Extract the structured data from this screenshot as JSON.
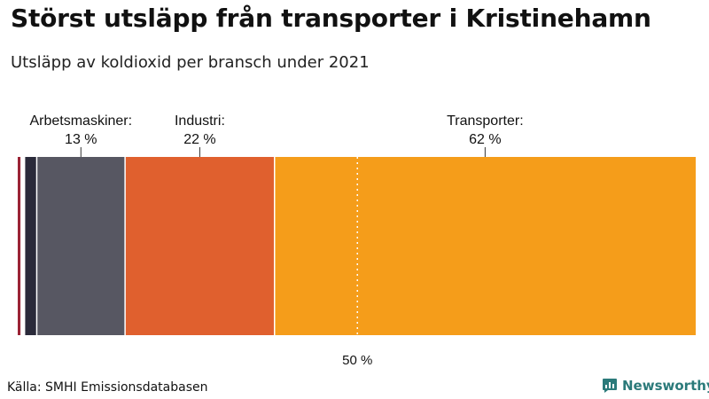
{
  "title": "Störst utsläpp från transporter i Kristinehamn",
  "subtitle": "Utsläpp av koldioxid per bransch under 2021",
  "source": "Källa: SMHI Emissionsdatabasen",
  "brand": {
    "name": "Newsworthy",
    "icon": "bar-chart-logo-icon",
    "color": "#2b7a7a"
  },
  "chart_data": {
    "type": "bar",
    "orientation": "stacked-horizontal",
    "unit": "%",
    "segments": [
      {
        "value": 0.5,
        "color": "#9b2335"
      },
      {
        "value": 0.5,
        "color": "#ffffff"
      },
      {
        "value": 1.8,
        "color": "#2a2a3a"
      },
      {
        "value": 13,
        "color": "#575762",
        "label": "Arbetsmaskiner:",
        "value_label": "13 %"
      },
      {
        "value": 22,
        "color": "#e0602e",
        "label": "Industri:",
        "value_label": "22 %"
      },
      {
        "value": 62,
        "color": "#f59d1a",
        "label": "Transporter:",
        "value_label": "62 %"
      }
    ],
    "reference_line": {
      "value": 50,
      "label": "50 %"
    },
    "xlim": [
      0,
      100
    ]
  }
}
